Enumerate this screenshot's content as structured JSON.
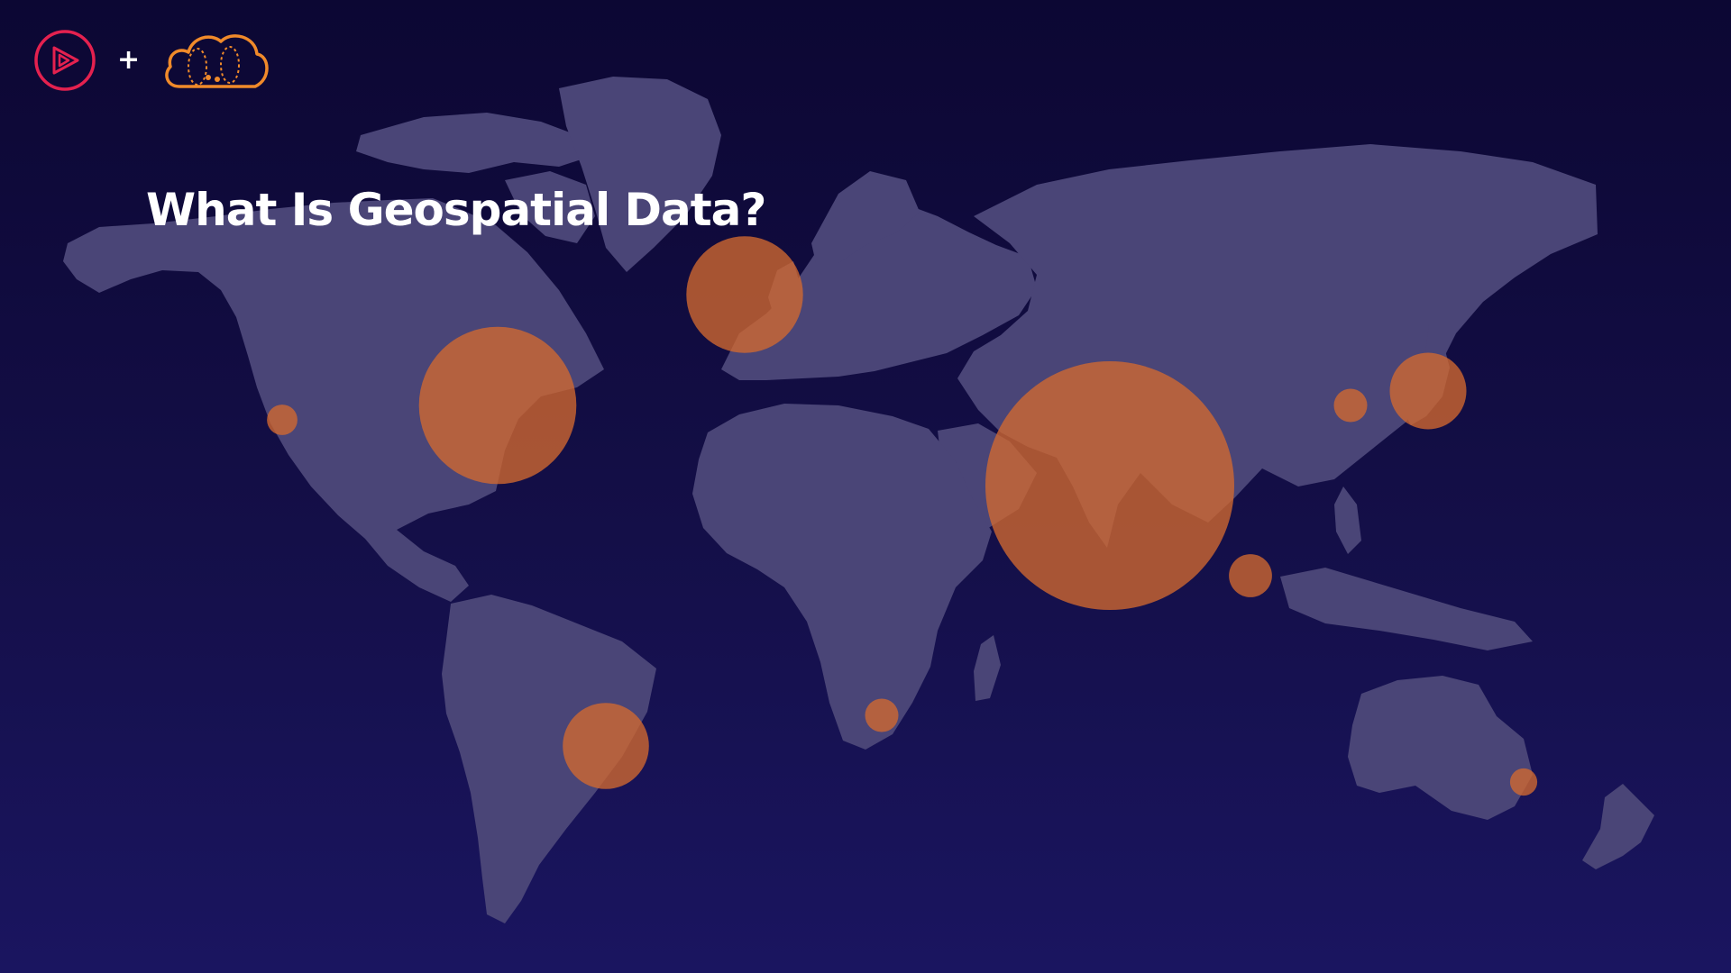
{
  "slide": {
    "title": "What Is Geospatial Data?"
  },
  "header": {
    "logo_left_icon": "play-triangle-circle-icon",
    "separator": "+",
    "logo_right_icon": "cloud-globe-icon"
  },
  "colors": {
    "background_top": "#0c0733",
    "background_bottom": "#1a1560",
    "land": "#4a4577",
    "bubble": "#d2692f",
    "logo_left": "#e4214f",
    "logo_right": "#f08a2a",
    "title": "#ffffff"
  },
  "map": {
    "type": "bubble-map",
    "basemap": "world",
    "bubbles": [
      {
        "location": "India",
        "size": 10
      },
      {
        "location": "Eastern United States",
        "size": 4
      },
      {
        "location": "North Atlantic",
        "size": 2.2
      },
      {
        "location": "Brazil",
        "size": 1.2
      },
      {
        "location": "Japan",
        "size": 0.95
      },
      {
        "location": "Southeast Asia",
        "size": 0.3
      },
      {
        "location": "California",
        "size": 0.15
      },
      {
        "location": "South Africa",
        "size": 0.18
      },
      {
        "location": "Korea",
        "size": 0.18
      },
      {
        "location": "Eastern Australia",
        "size": 0.12
      }
    ]
  }
}
